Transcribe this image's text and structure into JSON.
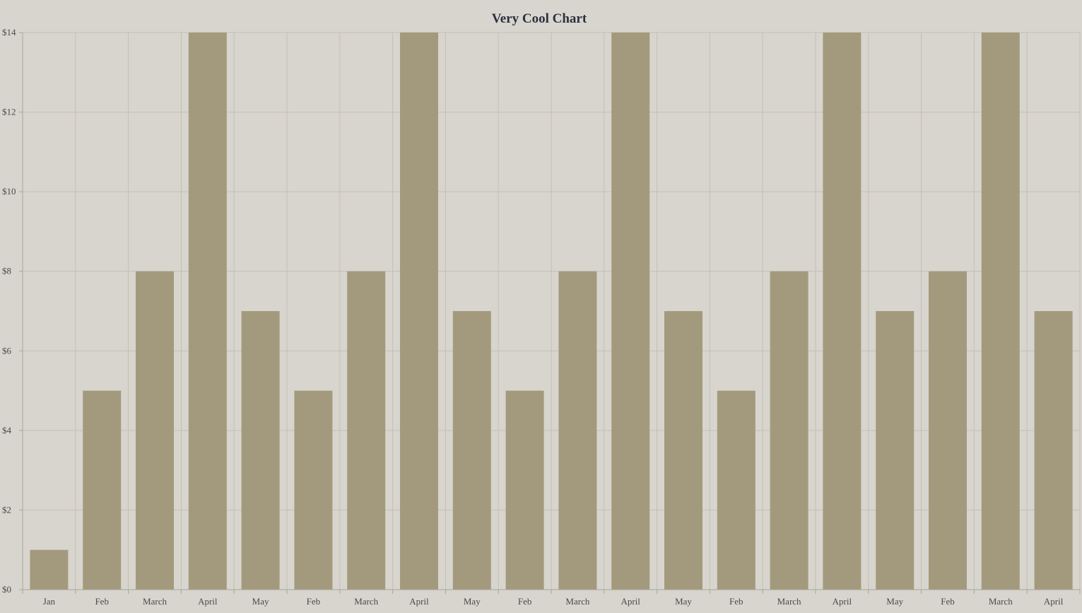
{
  "chart_data": {
    "type": "bar",
    "title": "Very Cool Chart",
    "xlabel": "",
    "ylabel": "",
    "categories": [
      "Jan",
      "Feb",
      "March",
      "April",
      "May",
      "Feb",
      "March",
      "April",
      "May",
      "Feb",
      "March",
      "April",
      "May",
      "Feb",
      "March",
      "April",
      "May",
      "Feb",
      "March",
      "April"
    ],
    "values": [
      1,
      5,
      8,
      14,
      7,
      5,
      8,
      14,
      7,
      5,
      8,
      14,
      7,
      5,
      8,
      14,
      7,
      8,
      14,
      7
    ],
    "ylim": [
      0,
      14
    ],
    "y_ticks": [
      0,
      2,
      4,
      6,
      8,
      10,
      12,
      14
    ],
    "y_tick_labels": [
      "$0",
      "$2",
      "$4",
      "$6",
      "$8",
      "$10",
      "$12",
      "$14"
    ],
    "grid": true,
    "legend": "none",
    "colors": {
      "bar": "#a39a7d",
      "background": "#d8d5ce"
    }
  }
}
